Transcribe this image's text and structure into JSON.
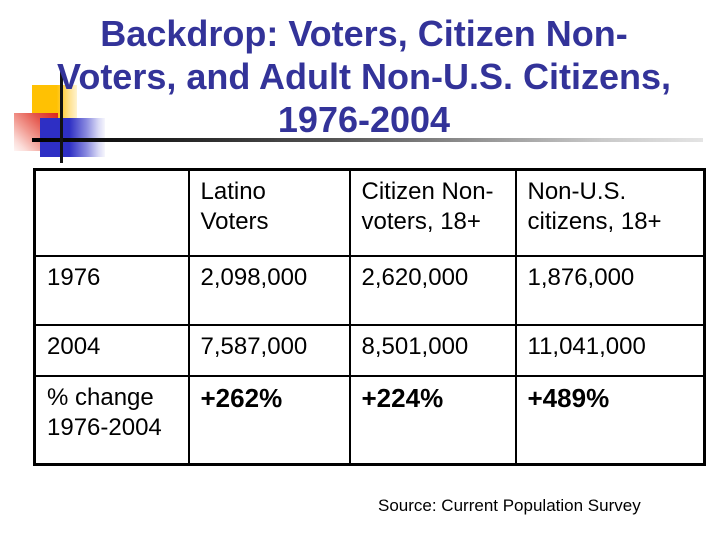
{
  "slide": {
    "title": {
      "lines": [
        "Backdrop: Voters, Citizen Non-",
        "Voters, and Adult Non-U.S. Citizens,",
        "1976-2004"
      ],
      "color": "#333399"
    },
    "source_note": "Source: Current Population Survey"
  },
  "decor": {
    "yellow_square": "#ffc103",
    "red_square": "#dc241e",
    "blue_square": "#2e2fc4",
    "cross_line": "#121212"
  },
  "table": {
    "header": [
      "",
      "Latino\nVoters",
      "Citizen Non-\nvoters, 18+",
      "Non-U.S.\ncitizens, 18+"
    ],
    "rows": [
      {
        "label": "1976",
        "values": [
          "2,098,000",
          "2,620,000",
          "1,876,000"
        ]
      },
      {
        "label": "2004",
        "values": [
          "7,587,000",
          "8,501,000",
          "11,041,000"
        ]
      },
      {
        "label": "% change\n1976-2004",
        "values": [
          "+262%",
          "+224%",
          "+489%"
        ]
      }
    ]
  },
  "chart_data": {
    "type": "table",
    "title": "Backdrop: Voters, Citizen Non-Voters, and Adult Non-U.S. Citizens, 1976-2004",
    "columns": [
      "Latino Voters",
      "Citizen Non-voters, 18+",
      "Non-U.S. citizens, 18+"
    ],
    "rows": [
      {
        "label": "1976",
        "values": [
          2098000,
          2620000,
          1876000
        ]
      },
      {
        "label": "2004",
        "values": [
          7587000,
          8501000,
          11041000
        ]
      },
      {
        "label": "% change 1976-2004",
        "values": [
          "+262%",
          "+224%",
          "+489%"
        ]
      }
    ],
    "source": "Source: Current Population Survey"
  }
}
